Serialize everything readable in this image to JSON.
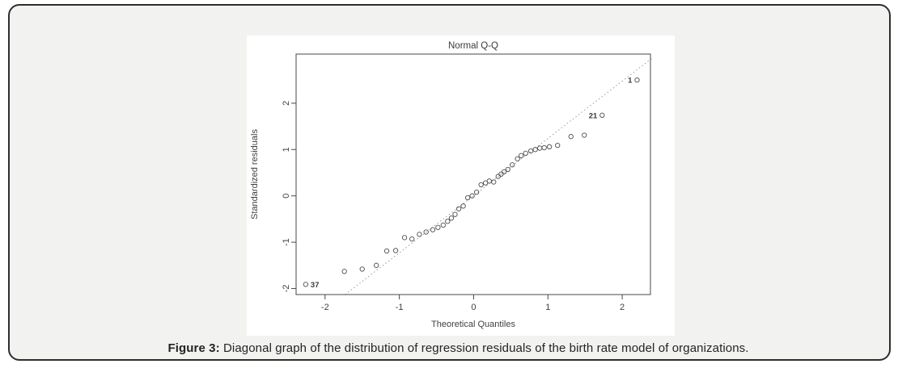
{
  "figure": {
    "caption_label": "Figure 3:",
    "caption_text": " Diagonal graph of the distribution of regression residuals of the birth rate model of organizations."
  },
  "colors": {
    "card_background": "#f2f2f0",
    "card_border": "#2e2e2e",
    "plot_background": "#ffffff",
    "point_stroke": "#4d4d4d",
    "ref_line": "#8f8f8f",
    "text": "#3f3f3f"
  },
  "chart_data": {
    "type": "scatter",
    "title": "Normal Q-Q",
    "xlabel": "Theoretical Quantiles",
    "ylabel": "Standardized residuals",
    "xlim": [
      -2.39,
      2.38
    ],
    "ylim": [
      -2.13,
      3.06
    ],
    "x_ticks": [
      -2,
      -1,
      0,
      1,
      2
    ],
    "y_ticks": [
      -2,
      -1,
      0,
      1,
      2
    ],
    "grid": false,
    "legend": "none",
    "ref_line": {
      "style": "dotted",
      "points": [
        [
          -1.73,
          -2.13
        ],
        [
          2.4,
          2.97
        ]
      ]
    },
    "points": [
      [
        -1.74,
        -1.63
      ],
      [
        -1.5,
        -1.58
      ],
      [
        -1.31,
        -1.5
      ],
      [
        -1.17,
        -1.19
      ],
      [
        -1.05,
        -1.18
      ],
      [
        -0.93,
        -0.9
      ],
      [
        -0.83,
        -0.93
      ],
      [
        -0.73,
        -0.83
      ],
      [
        -0.64,
        -0.78
      ],
      [
        -0.55,
        -0.73
      ],
      [
        -0.48,
        -0.68
      ],
      [
        -0.41,
        -0.63
      ],
      [
        -0.35,
        -0.55
      ],
      [
        -0.3,
        -0.48
      ],
      [
        -0.25,
        -0.4
      ],
      [
        -0.2,
        -0.28
      ],
      [
        -0.14,
        -0.22
      ],
      [
        -0.08,
        -0.04
      ],
      [
        -0.02,
        0.0
      ],
      [
        0.04,
        0.08
      ],
      [
        0.1,
        0.24
      ],
      [
        0.16,
        0.28
      ],
      [
        0.21,
        0.32
      ],
      [
        0.27,
        0.3
      ],
      [
        0.33,
        0.42
      ],
      [
        0.37,
        0.47
      ],
      [
        0.41,
        0.52
      ],
      [
        0.46,
        0.57
      ],
      [
        0.52,
        0.67
      ],
      [
        0.59,
        0.8
      ],
      [
        0.64,
        0.87
      ],
      [
        0.7,
        0.92
      ],
      [
        0.77,
        0.97
      ],
      [
        0.83,
        1.0
      ],
      [
        0.89,
        1.03
      ],
      [
        0.95,
        1.04
      ],
      [
        1.02,
        1.06
      ],
      [
        1.13,
        1.09
      ],
      [
        1.31,
        1.28
      ],
      [
        1.49,
        1.31
      ]
    ],
    "labeled_points": [
      {
        "x": 2.2,
        "y": 2.5,
        "label": "1",
        "side": "left"
      },
      {
        "x": 1.73,
        "y": 1.74,
        "label": "21",
        "side": "left"
      },
      {
        "x": -2.26,
        "y": -1.91,
        "label": "37",
        "side": "right"
      }
    ]
  }
}
